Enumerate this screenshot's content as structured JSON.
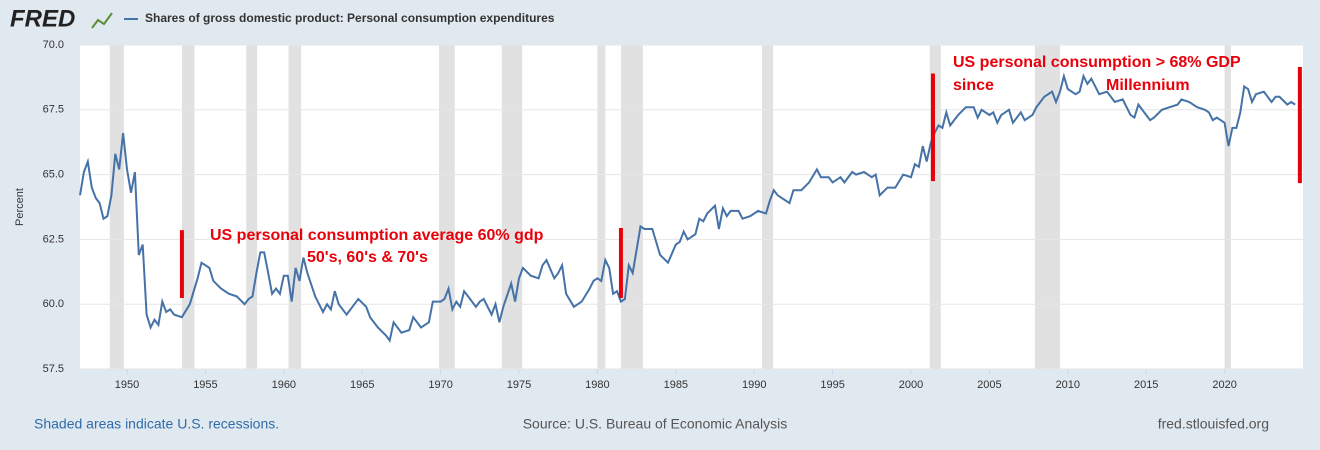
{
  "logo": "FRED",
  "footer": {
    "left": "Shaded areas indicate U.S. recessions.",
    "center": "Source: U.S. Bureau of Economic Analysis",
    "right": "fred.stlouisfed.org"
  },
  "chart_data": {
    "type": "line",
    "ylabel": "Percent",
    "xlim": [
      1947,
      2025
    ],
    "ylim": [
      57.5,
      70
    ],
    "xticks": [
      1950,
      1955,
      1960,
      1965,
      1970,
      1975,
      1980,
      1985,
      1990,
      1995,
      2000,
      2005,
      2010,
      2015,
      2020
    ],
    "yticks": [
      57.5,
      {
        "value": 60,
        "label": "60.0"
      },
      62.5,
      {
        "value": 65,
        "label": "65.0"
      },
      67.5,
      {
        "value": 70,
        "label": "70.0"
      }
    ],
    "grid": true,
    "recessions": [
      [
        1948.9,
        1949.8
      ],
      [
        1953.5,
        1954.3
      ],
      [
        1957.6,
        1958.3
      ],
      [
        1960.3,
        1961.1
      ],
      [
        1969.9,
        1970.9
      ],
      [
        1973.9,
        1975.2
      ],
      [
        1980.0,
        1980.5
      ],
      [
        1981.5,
        1982.9
      ],
      [
        1990.5,
        1991.2
      ],
      [
        2001.2,
        2001.9
      ],
      [
        2007.9,
        2009.5
      ],
      [
        2020.0,
        2020.4
      ]
    ],
    "highlights": [
      {
        "x": 1953.5,
        "y0": 60.24,
        "y1": 62.86
      },
      {
        "x": 1981.5,
        "y0": 60.24,
        "y1": 62.94
      },
      {
        "x": 2001.4,
        "y0": 64.75,
        "y1": 68.9
      },
      {
        "x": 2024.8,
        "y0": 64.67,
        "y1": 69.15
      }
    ],
    "annotations": [
      "US personal consumption average 60% gdp",
      "50's, 60's & 70's",
      "US personal consumption > 68% GDP",
      "since",
      "Millennium"
    ],
    "x": [
      1947.0,
      1947.25,
      1947.5,
      1947.75,
      1948.0,
      1948.25,
      1948.5,
      1948.75,
      1949.0,
      1949.25,
      1949.5,
      1949.75,
      1950.0,
      1950.25,
      1950.5,
      1950.75,
      1951.0,
      1951.25,
      1951.5,
      1951.75,
      1952.0,
      1952.25,
      1952.5,
      1952.75,
      1953.0,
      1953.5,
      1954.0,
      1954.5,
      1954.75,
      1955.25,
      1955.5,
      1956.0,
      1956.5,
      1957.0,
      1957.5,
      1957.75,
      1958.0,
      1958.25,
      1958.5,
      1958.75,
      1959.0,
      1959.25,
      1959.5,
      1959.75,
      1960.0,
      1960.25,
      1960.5,
      1960.75,
      1961.0,
      1961.25,
      1961.5,
      1962.0,
      1962.5,
      1962.75,
      1963.0,
      1963.25,
      1963.5,
      1964.0,
      1964.5,
      1964.75,
      1965.25,
      1965.5,
      1966.0,
      1966.5,
      1966.75,
      1967.0,
      1967.5,
      1968.0,
      1968.25,
      1968.75,
      1969.25,
      1969.5,
      1970.0,
      1970.25,
      1970.5,
      1970.75,
      1971.0,
      1971.25,
      1971.5,
      1971.75,
      1972.25,
      1972.5,
      1972.75,
      1973.25,
      1973.5,
      1973.75,
      1974.0,
      1974.5,
      1974.75,
      1975.0,
      1975.25,
      1975.75,
      1976.25,
      1976.5,
      1976.75,
      1977.25,
      1977.5,
      1977.75,
      1978.0,
      1978.5,
      1979.0,
      1979.5,
      1979.75,
      1980.0,
      1980.25,
      1980.5,
      1980.75,
      1981.0,
      1981.25,
      1981.5,
      1981.75,
      1982.0,
      1982.25,
      1982.5,
      1982.75,
      1983.0,
      1983.5,
      1984.0,
      1984.5,
      1985.0,
      1985.25,
      1985.5,
      1985.75,
      1986.25,
      1986.5,
      1986.75,
      1987.0,
      1987.5,
      1987.75,
      1988.0,
      1988.25,
      1988.5,
      1989.0,
      1989.25,
      1989.75,
      1990.25,
      1990.75,
      1991.0,
      1991.25,
      1991.5,
      1992.0,
      1992.25,
      1992.5,
      1993.0,
      1993.5,
      1994.0,
      1994.25,
      1994.75,
      1995.0,
      1995.5,
      1995.75,
      1996.25,
      1996.5,
      1997.0,
      1997.5,
      1997.75,
      1998.0,
      1998.5,
      1999.0,
      1999.5,
      2000.0,
      2000.25,
      2000.5,
      2000.75,
      2001.0,
      2001.25,
      2001.5,
      2001.75,
      2002.0,
      2002.25,
      2002.5,
      2003.0,
      2003.5,
      2004.0,
      2004.25,
      2004.5,
      2005.0,
      2005.25,
      2005.5,
      2005.75,
      2006.25,
      2006.5,
      2007.0,
      2007.25,
      2007.75,
      2008.0,
      2008.5,
      2009.0,
      2009.25,
      2009.5,
      2009.75,
      2010.0,
      2010.5,
      2010.75,
      2011.0,
      2011.25,
      2011.5,
      2012.0,
      2012.5,
      2013.0,
      2013.5,
      2014.0,
      2014.25,
      2014.5,
      2015.0,
      2015.25,
      2015.5,
      2016.0,
      2016.5,
      2017.0,
      2017.25,
      2017.75,
      2018.25,
      2018.75,
      2019.0,
      2019.25,
      2019.5,
      2019.75,
      2020.0,
      2020.25,
      2020.5,
      2020.75,
      2021.0,
      2021.25,
      2021.5,
      2021.75,
      2022.0,
      2022.5,
      2023.0,
      2023.25,
      2023.5,
      2024.0,
      2024.25,
      2024.5
    ],
    "series": [
      {
        "name": "Shares of gross domestic product: Personal consumption expenditures",
        "color": "#4572a7",
        "values": [
          64.2,
          65.1,
          65.5,
          64.5,
          64.1,
          63.9,
          63.3,
          63.4,
          64.2,
          65.8,
          65.2,
          66.6,
          65.2,
          64.3,
          65.1,
          61.9,
          62.3,
          59.6,
          59.1,
          59.4,
          59.2,
          60.1,
          59.7,
          59.8,
          59.6,
          59.5,
          60.0,
          61.0,
          61.6,
          61.4,
          60.9,
          60.6,
          60.4,
          60.3,
          60.0,
          60.2,
          60.3,
          61.2,
          62.0,
          62.0,
          61.2,
          60.4,
          60.6,
          60.4,
          61.1,
          61.1,
          60.1,
          61.4,
          60.9,
          61.8,
          61.2,
          60.3,
          59.7,
          60.0,
          59.8,
          60.5,
          60.0,
          59.6,
          60.0,
          60.2,
          59.9,
          59.5,
          59.1,
          58.8,
          58.6,
          59.3,
          58.9,
          59.0,
          59.5,
          59.1,
          59.3,
          60.1,
          60.1,
          60.2,
          60.6,
          59.8,
          60.1,
          59.9,
          60.5,
          60.3,
          59.9,
          60.1,
          60.2,
          59.6,
          60.0,
          59.3,
          59.9,
          60.8,
          60.1,
          61.0,
          61.4,
          61.1,
          61.0,
          61.5,
          61.7,
          61.0,
          61.2,
          61.5,
          60.4,
          59.9,
          60.1,
          60.6,
          60.9,
          61.0,
          60.9,
          61.7,
          61.4,
          60.4,
          60.5,
          60.1,
          60.2,
          61.5,
          61.2,
          62.1,
          63.0,
          62.9,
          62.9,
          61.9,
          61.6,
          62.3,
          62.4,
          62.8,
          62.5,
          62.7,
          63.3,
          63.2,
          63.5,
          63.8,
          62.9,
          63.7,
          63.4,
          63.6,
          63.6,
          63.3,
          63.4,
          63.6,
          63.5,
          64.0,
          64.4,
          64.2,
          64.0,
          63.9,
          64.4,
          64.4,
          64.7,
          65.2,
          64.9,
          64.9,
          64.7,
          64.9,
          64.7,
          65.1,
          65.0,
          65.1,
          64.9,
          65.0,
          64.2,
          64.5,
          64.5,
          65.0,
          64.9,
          65.4,
          65.3,
          66.1,
          65.5,
          66.2,
          66.6,
          66.9,
          66.8,
          67.4,
          66.9,
          67.3,
          67.6,
          67.6,
          67.2,
          67.5,
          67.3,
          67.4,
          67.0,
          67.3,
          67.5,
          67.0,
          67.4,
          67.1,
          67.3,
          67.6,
          68.0,
          68.2,
          67.8,
          68.2,
          68.8,
          68.3,
          68.1,
          68.2,
          68.8,
          68.5,
          68.7,
          68.1,
          68.2,
          67.8,
          67.9,
          67.3,
          67.2,
          67.7,
          67.3,
          67.1,
          67.2,
          67.5,
          67.6,
          67.7,
          67.9,
          67.8,
          67.6,
          67.5,
          67.4,
          67.1,
          67.2,
          67.1,
          67.0,
          66.1,
          66.8,
          66.8,
          67.4,
          68.4,
          68.3,
          67.8,
          68.1,
          68.2,
          67.8,
          68.0,
          68.0,
          67.7,
          67.8,
          67.7
        ]
      }
    ]
  }
}
